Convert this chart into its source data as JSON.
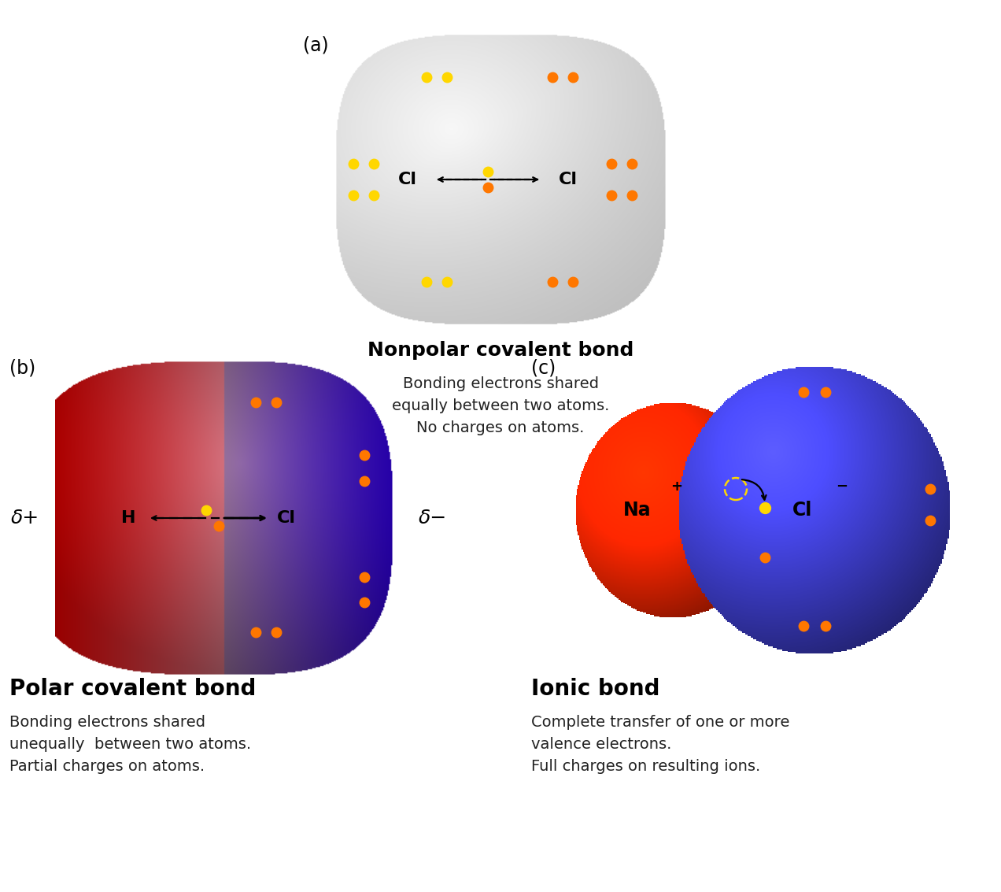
{
  "background_color": "#ffffff",
  "title_a": "(a)",
  "title_b": "(b)",
  "title_c": "(c)",
  "label_nonpolar": "Nonpolar covalent bond",
  "desc_nonpolar": "Bonding electrons shared\nequally between two atoms.\nNo charges on atoms.",
  "label_polar": "Polar covalent bond",
  "desc_polar": "Bonding electrons shared\nunequally  between two atoms.\nPartial charges on atoms.",
  "label_ionic": "Ionic bond",
  "desc_ionic": "Complete transfer of one or more\nvalence electrons.\nFull charges on resulting ions.",
  "orange_color": "#FF7700",
  "yellow_color": "#FFD700",
  "delta_plus": "δ+",
  "delta_minus": "δ−"
}
